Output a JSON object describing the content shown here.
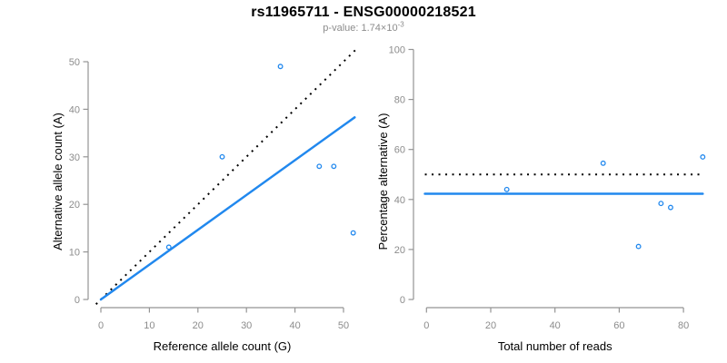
{
  "header": {
    "title": "rs11965711 - ENSG00000218521",
    "subtitle_prefix": "p-value: 1.74×10",
    "subtitle_exponent": "-3"
  },
  "colors": {
    "accent_blue": "#2188ee",
    "line_black": "#000000",
    "axis_gray": "#949494",
    "tick_label_gray": "#8c8c8c",
    "axis_title_black": "#000000",
    "subtitle_gray": "#8c8c8c",
    "background": "#ffffff"
  },
  "chart_data": [
    {
      "type": "scatter",
      "name": "allele-counts-plot",
      "xlabel": "Reference allele count (G)",
      "ylabel": "Alternative allele count (A)",
      "xticks": [
        0,
        10,
        20,
        30,
        40,
        50
      ],
      "yticks": [
        0,
        10,
        20,
        30,
        40,
        50
      ],
      "xlim": [
        0,
        52
      ],
      "ylim": [
        0,
        50
      ],
      "grid": false,
      "legend": "none",
      "points": [
        [
          14,
          11
        ],
        [
          25,
          30
        ],
        [
          37,
          49
        ],
        [
          45,
          28
        ],
        [
          48,
          28
        ],
        [
          52,
          14
        ]
      ],
      "lines": [
        {
          "name": "identity-line",
          "style": "dotted",
          "color_key": "line_black",
          "from": [
            -1,
            -1
          ],
          "to": [
            52.8,
            52.8
          ]
        },
        {
          "name": "fit-line",
          "style": "solid",
          "color_key": "accent_blue",
          "from": [
            0,
            0
          ],
          "to": [
            52.3,
            38.3
          ]
        }
      ]
    },
    {
      "type": "scatter",
      "name": "percentage-reads-plot",
      "xlabel": "Total number of reads",
      "ylabel": "Percentage alternative (A)",
      "xticks": [
        0,
        20,
        40,
        60,
        80
      ],
      "yticks": [
        0,
        20,
        40,
        60,
        80,
        100
      ],
      "xlim": [
        0,
        86
      ],
      "ylim": [
        0,
        100
      ],
      "grid": false,
      "legend": "none",
      "points": [
        [
          25,
          44
        ],
        [
          55,
          54.5
        ],
        [
          66,
          21.2
        ],
        [
          73,
          38.4
        ],
        [
          76,
          36.8
        ],
        [
          86,
          57
        ]
      ],
      "lines": [
        {
          "name": "expected-50pct-line",
          "style": "dotted",
          "color_key": "line_black",
          "from": [
            -0.5,
            50
          ],
          "to": [
            86,
            50
          ]
        },
        {
          "name": "mean-pct-line",
          "style": "solid",
          "color_key": "accent_blue",
          "from": [
            -0.5,
            42.3
          ],
          "to": [
            86,
            42.3
          ]
        }
      ]
    }
  ]
}
